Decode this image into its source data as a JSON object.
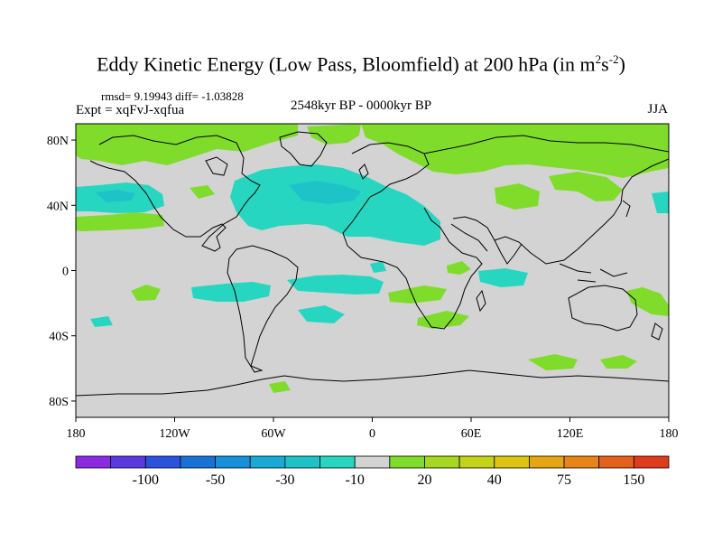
{
  "title": {
    "main": "Eddy Kinetic Energy (Low Pass, Bloomfield) at 200 hPa (in m",
    "sup1": "2",
    "mid": "s",
    "sup2": "-2",
    "end": ")"
  },
  "stats": "rmsd= 9.19943 diff= -1.03828",
  "expt": "Expt = xqFvJ-xqfua",
  "period": "2548kyr BP - 0000kyr BP",
  "season": "JJA",
  "colors": {
    "ocean_land_neutral": "#d3d3d3",
    "neg_light": "#27d6c0",
    "neg_medium": "#1ec3c8",
    "neg_strong": "#18aad6",
    "pos_light": "#7fdc2a",
    "pos_medium": "#a5d81f",
    "coast": "#000000"
  },
  "map": {
    "lat_ticks": [
      {
        "lat": 80,
        "label": "80N"
      },
      {
        "lat": 40,
        "label": "40N"
      },
      {
        "lat": 0,
        "label": "0"
      },
      {
        "lat": -40,
        "label": "40S"
      },
      {
        "lat": -80,
        "label": "80S"
      }
    ],
    "lon_ticks": [
      {
        "lon": -180,
        "label": "180"
      },
      {
        "lon": -120,
        "label": "120W"
      },
      {
        "lon": -60,
        "label": "60W"
      },
      {
        "lon": 0,
        "label": "0"
      },
      {
        "lon": 60,
        "label": "60E"
      },
      {
        "lon": 120,
        "label": "120E"
      },
      {
        "lon": 180,
        "label": "180"
      }
    ],
    "lat_range": [
      -90,
      90
    ],
    "lon_range": [
      -180,
      180
    ]
  },
  "colorbar": {
    "colors": [
      "#8a2be2",
      "#5a3ae0",
      "#2b52de",
      "#1772d6",
      "#1790da",
      "#18aad6",
      "#1ec3c8",
      "#27d6c0",
      "#d3d3d3",
      "#7fdc2a",
      "#a5d81f",
      "#c4d318",
      "#dcc410",
      "#e6a513",
      "#e88418",
      "#e6601c",
      "#e03b1c"
    ],
    "labels": [
      "-100",
      "-50",
      "-30",
      "-10",
      "20",
      "40",
      "75",
      "150"
    ]
  }
}
